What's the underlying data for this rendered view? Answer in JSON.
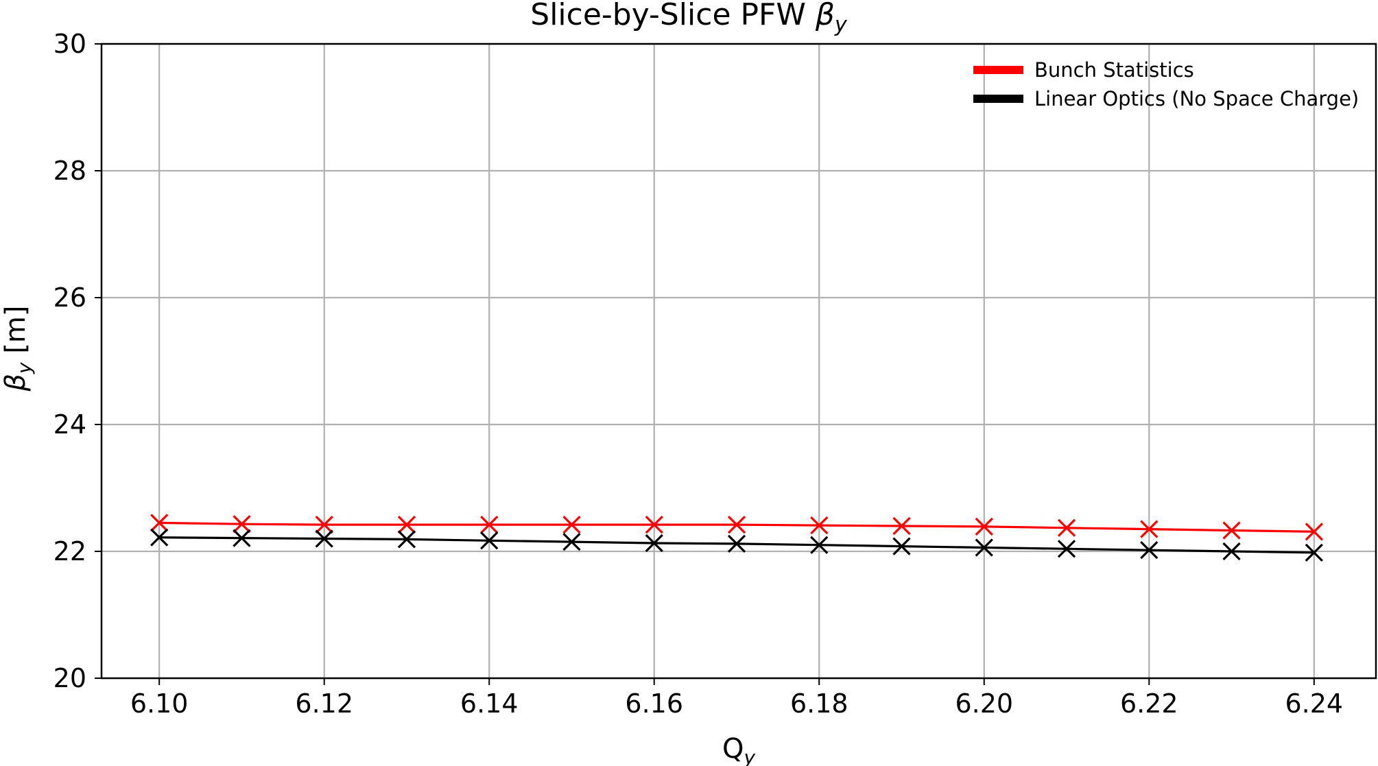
{
  "chart_data": {
    "type": "line",
    "title_main": "Slice-by-Slice PFW ",
    "title_symbol": "β",
    "title_subscript": "y",
    "xlabel_main": "Q",
    "xlabel_subscript": "y",
    "ylabel_symbol": "β",
    "ylabel_subscript": "y",
    "ylabel_unit": " [m]",
    "xlim": [
      6.093,
      6.2475
    ],
    "ylim": [
      20,
      30
    ],
    "xticks": [
      6.1,
      6.12,
      6.14,
      6.16,
      6.18,
      6.2,
      6.22,
      6.24
    ],
    "xtick_labels": [
      "6.10",
      "6.12",
      "6.14",
      "6.16",
      "6.18",
      "6.20",
      "6.22",
      "6.24"
    ],
    "yticks": [
      20,
      22,
      24,
      26,
      28,
      30
    ],
    "ytick_labels": [
      "20",
      "22",
      "24",
      "26",
      "28",
      "30"
    ],
    "grid": true,
    "legend_position": "top-right",
    "marker": "x",
    "x": [
      6.1,
      6.11,
      6.12,
      6.13,
      6.14,
      6.15,
      6.16,
      6.17,
      6.18,
      6.19,
      6.2,
      6.21,
      6.22,
      6.23,
      6.24
    ],
    "series": [
      {
        "name": "Bunch Statistics",
        "color": "#ff0000",
        "values": [
          22.45,
          22.43,
          22.42,
          22.42,
          22.42,
          22.42,
          22.42,
          22.42,
          22.41,
          22.4,
          22.39,
          22.37,
          22.35,
          22.33,
          22.31
        ]
      },
      {
        "name": "Linear Optics (No Space Charge)",
        "color": "#000000",
        "values": [
          22.22,
          22.21,
          22.2,
          22.19,
          22.17,
          22.15,
          22.13,
          22.12,
          22.1,
          22.08,
          22.06,
          22.04,
          22.02,
          22.0,
          21.98
        ]
      }
    ]
  }
}
